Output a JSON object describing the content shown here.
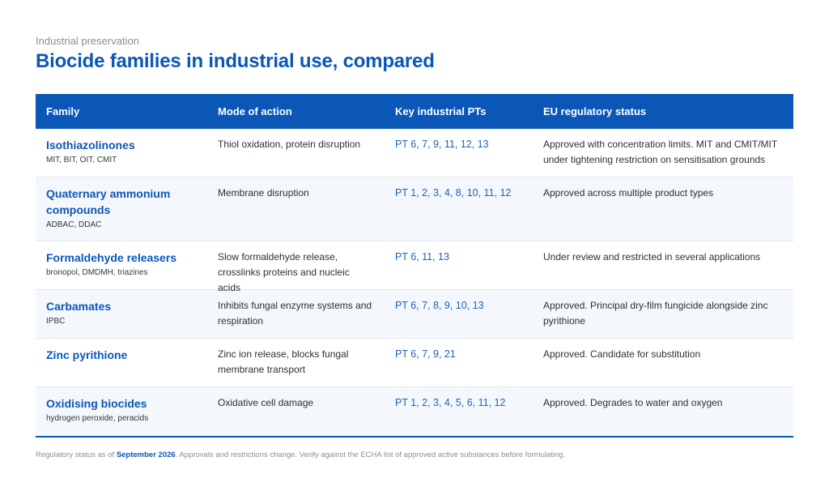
{
  "header": {
    "eyebrow": "Industrial preservation",
    "title": "Biocide families in industrial use, compared"
  },
  "table": {
    "columns": [
      "Family",
      "Mode of action",
      "Key industrial PTs",
      "EU regulatory status"
    ],
    "rows": [
      {
        "family": "Isothiazolinones",
        "examples": "MIT, BIT, OIT, CMIT",
        "mode": "Thiol oxidation, protein disruption",
        "pts": "PT 6, 7, 9, 11, 12, 13",
        "status": "Approved with concentration limits. MIT and CMIT/MIT under tightening restriction on sensitisation grounds"
      },
      {
        "family": "Quaternary ammonium compounds",
        "examples": "ADBAC, DDAC",
        "mode": "Membrane disruption",
        "pts": "PT 1, 2, 3, 4, 8, 10, 11, 12",
        "status": "Approved across multiple product types"
      },
      {
        "family": "Formaldehyde releasers",
        "examples": "bronopol, DMDMH, triazines",
        "mode": "Slow formaldehyde release, crosslinks proteins and nucleic acids",
        "pts": "PT 6, 11, 13",
        "status": "Under review and restricted in several applications"
      },
      {
        "family": "Carbamates",
        "examples": "IPBC",
        "mode": "Inhibits fungal enzyme systems and respiration",
        "pts": "PT 6, 7, 8, 9, 10, 13",
        "status": "Approved. Principal dry-film fungicide alongside zinc pyrithione"
      },
      {
        "family": "Zinc pyrithione",
        "examples": "",
        "mode": "Zinc ion release, blocks fungal membrane transport",
        "pts": "PT 6, 7, 9, 21",
        "status": "Approved. Candidate for substitution"
      },
      {
        "family": "Oxidising biocides",
        "examples": "hydrogen peroxide, peracids",
        "mode": "Oxidative cell damage",
        "pts": "PT 1, 2, 3, 4, 5, 6, 11, 12",
        "status": "Approved. Degrades to water and oxygen"
      }
    ]
  },
  "footnote": {
    "prefix": "Regulatory status as of ",
    "date": "September 2026",
    "suffix": ". Approvals and restrictions change. Verify against the ECHA list of approved active substances before formulating."
  },
  "colors": {
    "accent": "#0b57b8",
    "row_alt": "#f4f7fb"
  }
}
